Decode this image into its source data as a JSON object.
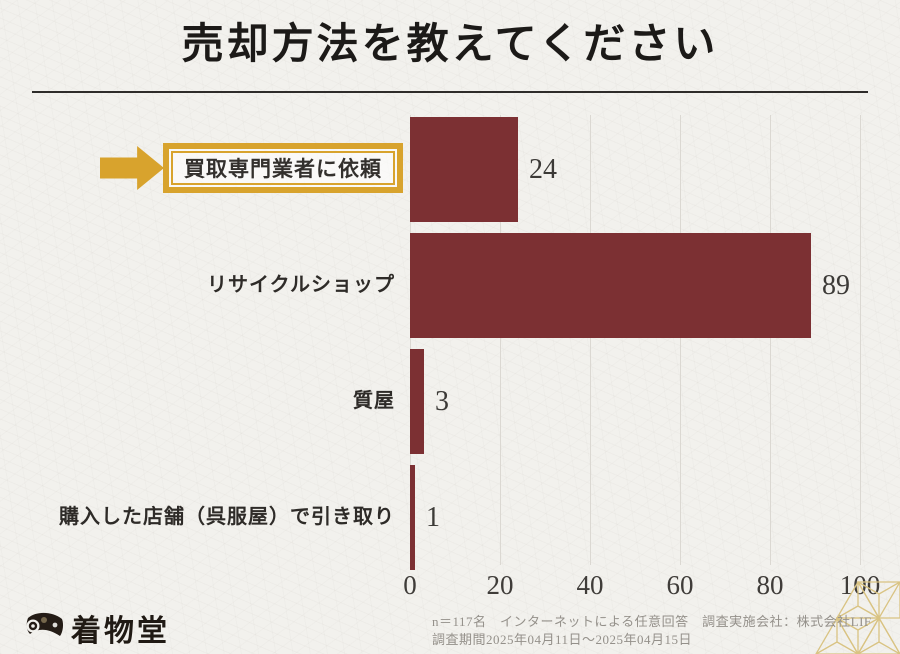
{
  "title": "売却方法を教えてください",
  "chart_data": {
    "type": "bar",
    "orientation": "horizontal",
    "title": "売却方法を教えてください",
    "categories": [
      "買取専門業者に依頼",
      "リサイクルショップ",
      "質屋",
      "購入した店舗（呉服屋）で引き取り"
    ],
    "values": [
      24,
      89,
      3,
      1
    ],
    "xlim": [
      0,
      100
    ],
    "xticks": [
      0,
      20,
      40,
      60,
      80,
      100
    ],
    "grid": true,
    "legend": false,
    "bar_color": "#7C3033",
    "highlight": {
      "category": "買取専門業者に依頼",
      "box_color": "#D8A32D",
      "arrow_icon": "right-arrow"
    }
  },
  "footer": {
    "brand": "着物堂",
    "logo_icon": "fan-icon",
    "note_line1": "n＝117名　インターネットによる任意回答　調査実施会社：株式会社LIF",
    "note_line2": "調査期間2025年04月11日～2025年04月15日"
  },
  "decor": {
    "corner_pattern": "asanoha-pattern",
    "pattern_color": "#D9C382"
  },
  "colors": {
    "background": "#F2F1ED",
    "bar": "#7C3033",
    "accent_gold": "#D8A32D",
    "text_dark": "#2E2B28",
    "text_muted": "#94908A"
  }
}
